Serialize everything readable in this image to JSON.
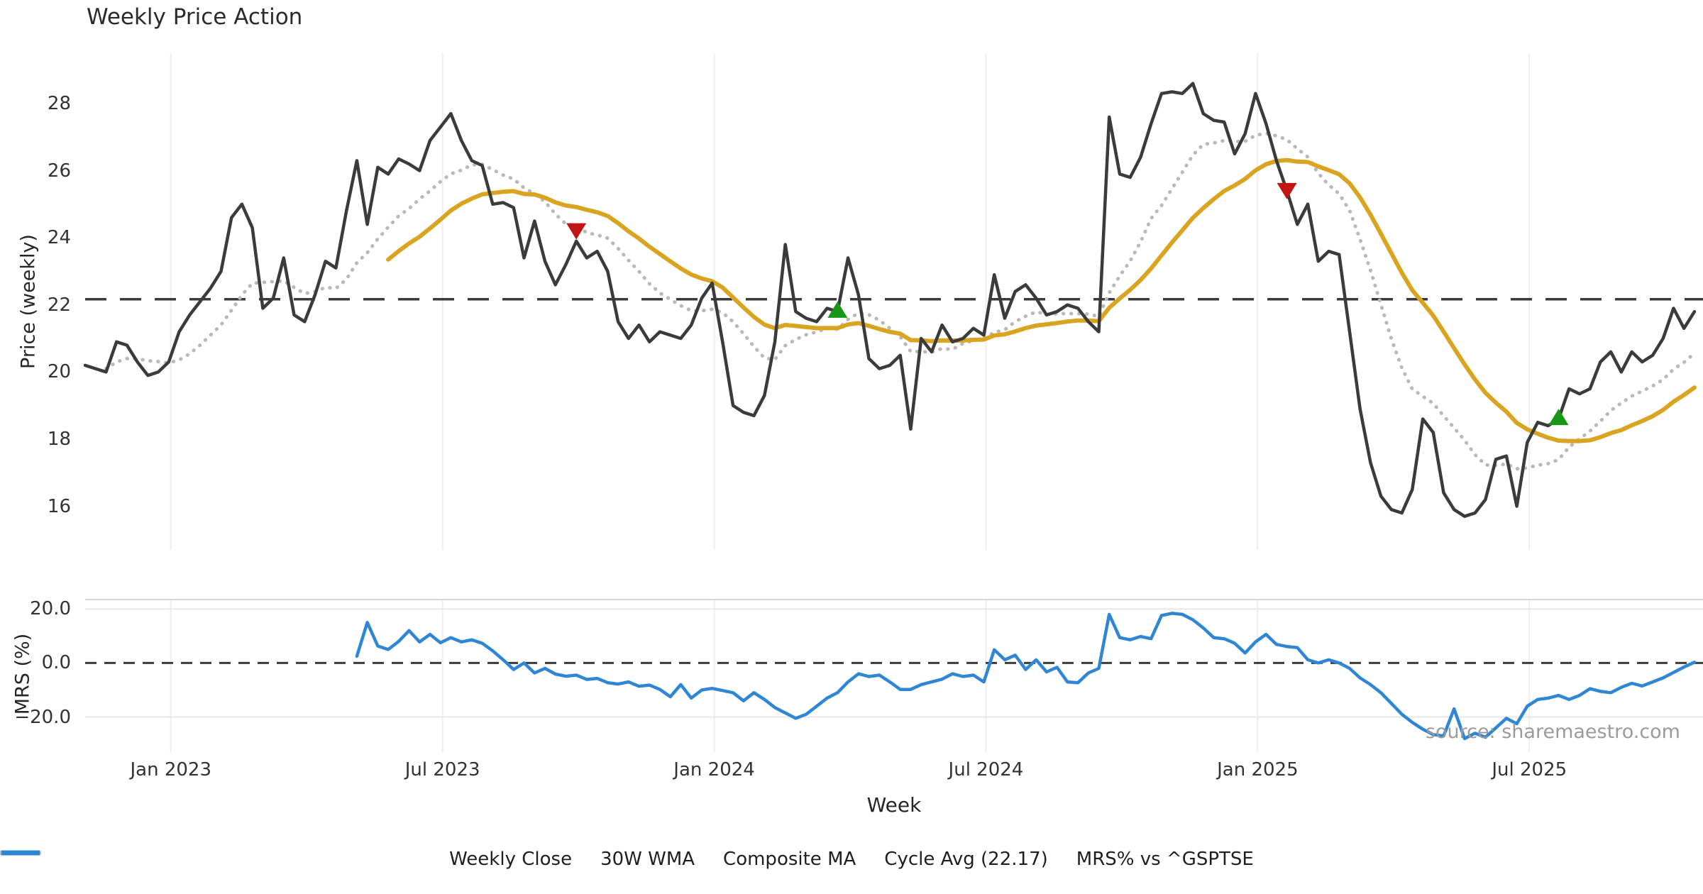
{
  "title": "Weekly Price Action",
  "x_axis_label": "Week",
  "source_note": "source: sharemaestro.com",
  "colors": {
    "close": "#3b3b3b",
    "wma30": "#d9a420",
    "composite": "#b9b9b9",
    "cycle_avg": "#3b3b3b",
    "mrs": "#2f86d5",
    "sell_marker": "#c21414",
    "buy_marker": "#179617",
    "grid": "#eeeeee",
    "grid_bottom": "#e7e7e7",
    "spine": "#d6d6d6",
    "tick_text": "#333333"
  },
  "legend": [
    {
      "label": "Weekly Close",
      "color": "#3b3b3b",
      "style": "solid"
    },
    {
      "label": "30W WMA",
      "color": "#d9a420",
      "style": "solid"
    },
    {
      "label": "Composite MA",
      "color": "#b9b9b9",
      "style": "dotted"
    },
    {
      "label": "Cycle Avg (22.17)",
      "color": "#3b3b3b",
      "style": "dashed"
    },
    {
      "label": "MRS% vs ^GSPTSE",
      "color": "#2f86d5",
      "style": "solid"
    }
  ],
  "chart_data": [
    {
      "type": "line",
      "title": "Weekly Price Action",
      "ylabel": "Price (weekly)",
      "ylim": [
        14.7,
        29.5
      ],
      "grid": "vertical-only",
      "y_ticks": [
        {
          "label": "28",
          "value": 28
        },
        {
          "label": "26",
          "value": 26
        },
        {
          "label": "24",
          "value": 24
        },
        {
          "label": "22",
          "value": 22
        },
        {
          "label": "20",
          "value": 20
        },
        {
          "label": "18",
          "value": 18
        },
        {
          "label": "16",
          "value": 16
        }
      ],
      "x_ticks": [
        {
          "label": "Jan 2023",
          "week": 8.2
        },
        {
          "label": "Jul 2023",
          "week": 34.2
        },
        {
          "label": "Jan 2024",
          "week": 60.2
        },
        {
          "label": "Jul 2024",
          "week": 86.2
        },
        {
          "label": "Jan 2025",
          "week": 112.2
        },
        {
          "label": "Jul 2025",
          "week": 138.2
        }
      ],
      "cycle_avg": 22.17,
      "series": [
        {
          "name": "Weekly Close",
          "style": "solid",
          "start_week": 0,
          "values": [
            20.2,
            20.1,
            20.0,
            20.9,
            20.8,
            20.3,
            19.9,
            20.0,
            20.3,
            21.2,
            21.7,
            22.1,
            22.5,
            23.0,
            24.6,
            25.0,
            24.3,
            21.9,
            22.2,
            23.4,
            21.7,
            21.5,
            22.3,
            23.3,
            23.1,
            24.8,
            26.3,
            24.4,
            26.1,
            25.9,
            26.35,
            26.2,
            26.0,
            26.9,
            27.3,
            27.7,
            26.9,
            26.3,
            26.15,
            25.0,
            25.05,
            24.9,
            23.4,
            24.5,
            23.3,
            22.6,
            23.2,
            23.9,
            23.4,
            23.6,
            23.0,
            21.5,
            21.0,
            21.4,
            20.9,
            21.2,
            21.1,
            21.0,
            21.4,
            22.2,
            22.65,
            20.9,
            19.0,
            18.8,
            18.7,
            19.3,
            20.9,
            23.8,
            21.8,
            21.6,
            21.5,
            21.9,
            21.8,
            23.4,
            22.3,
            20.4,
            20.1,
            20.2,
            20.5,
            18.3,
            21.0,
            20.6,
            21.4,
            20.9,
            21.0,
            21.3,
            21.1,
            22.9,
            21.6,
            22.4,
            22.6,
            22.2,
            21.7,
            21.8,
            22.0,
            21.9,
            21.5,
            21.2,
            27.6,
            25.9,
            25.8,
            26.4,
            27.4,
            28.3,
            28.35,
            28.3,
            28.6,
            27.7,
            27.5,
            27.45,
            26.5,
            27.1,
            28.3,
            27.4,
            26.3,
            25.4,
            24.4,
            25.0,
            23.3,
            23.6,
            23.5,
            21.2,
            18.9,
            17.3,
            16.3,
            15.9,
            15.8,
            16.5,
            18.6,
            18.2,
            16.4,
            15.9,
            15.7,
            15.8,
            16.2,
            17.4,
            17.5,
            16.0,
            17.9,
            18.5,
            18.4,
            18.6,
            19.5,
            19.35,
            19.5,
            20.3,
            20.6,
            20.0,
            20.6,
            20.3,
            20.5,
            21.0,
            21.9,
            21.3,
            21.8
          ]
        },
        {
          "name": "30W WMA",
          "style": "solid",
          "start_week": 29,
          "derived": "30-week linearly weighted moving average of Weekly Close"
        },
        {
          "name": "Composite MA",
          "style": "dotted",
          "start_week": 2,
          "derived": "mean of 5/10/20-week simple moving averages of Weekly Close"
        },
        {
          "name": "Cycle Avg (22.17)",
          "style": "dashed",
          "value": 22.17
        }
      ],
      "markers": {
        "sell": {
          "shape": "triangle-down",
          "points": [
            {
              "week": 47,
              "price": 24.2
            },
            {
              "week": 115,
              "price": 25.4
            }
          ]
        },
        "buy": {
          "shape": "triangle-up",
          "points": [
            {
              "week": 72,
              "price": 21.85
            },
            {
              "week": 141,
              "price": 18.65
            }
          ]
        }
      }
    },
    {
      "type": "line",
      "ylabel": "MRS (%)",
      "ylim": [
        -33,
        23.5
      ],
      "zero_line": 0.0,
      "y_ticks": [
        {
          "label": "20.0",
          "value": 20
        },
        {
          "label": "0.0",
          "value": 0
        },
        {
          "label": "−20.0",
          "value": -20
        }
      ],
      "series": [
        {
          "name": "MRS% vs ^GSPTSE",
          "style": "solid",
          "start_week": 26,
          "values": [
            2.5,
            15,
            6.3,
            5,
            8,
            12,
            7.8,
            10.6,
            7.5,
            9.4,
            7.8,
            8.6,
            7.3,
            4.5,
            1.2,
            -2.4,
            0,
            -3.7,
            -2,
            -4.1,
            -4.9,
            -4.5,
            -6.1,
            -5.7,
            -7.3,
            -7.8,
            -7,
            -8.6,
            -8.2,
            -9.8,
            -12.5,
            -8,
            -13,
            -10,
            -9.4,
            -10.2,
            -11,
            -14,
            -11,
            -13.5,
            -16.5,
            -18.5,
            -20.5,
            -19,
            -16,
            -13,
            -11,
            -7,
            -4,
            -5,
            -4.5,
            -7,
            -9.8,
            -9.8,
            -8,
            -7,
            -6,
            -4,
            -5,
            -4.5,
            -7,
            4.9,
            1.2,
            2.9,
            -2.4,
            1.2,
            -3.3,
            -1.6,
            -7,
            -7.3,
            -3.7,
            -2.0,
            18,
            9.4,
            8.6,
            9.8,
            9,
            17.6,
            18.4,
            18,
            16,
            13,
            9.4,
            9,
            7.3,
            3.7,
            7.8,
            10.6,
            6.9,
            6.1,
            5.7,
            1.2,
            0,
            1.2,
            0,
            -2,
            -5.5,
            -8,
            -11,
            -15,
            -19,
            -22,
            -24.5,
            -26.5,
            -27,
            -17,
            -28,
            -26,
            -27.5,
            -24,
            -20.5,
            -22.5,
            -16,
            -13.5,
            -13,
            -12,
            -13.5,
            -12,
            -9.5,
            -10.5,
            -11,
            -9,
            -7.5,
            -8.5,
            -7,
            -5.5,
            -3.5,
            -1.5,
            0.3
          ]
        }
      ]
    }
  ]
}
